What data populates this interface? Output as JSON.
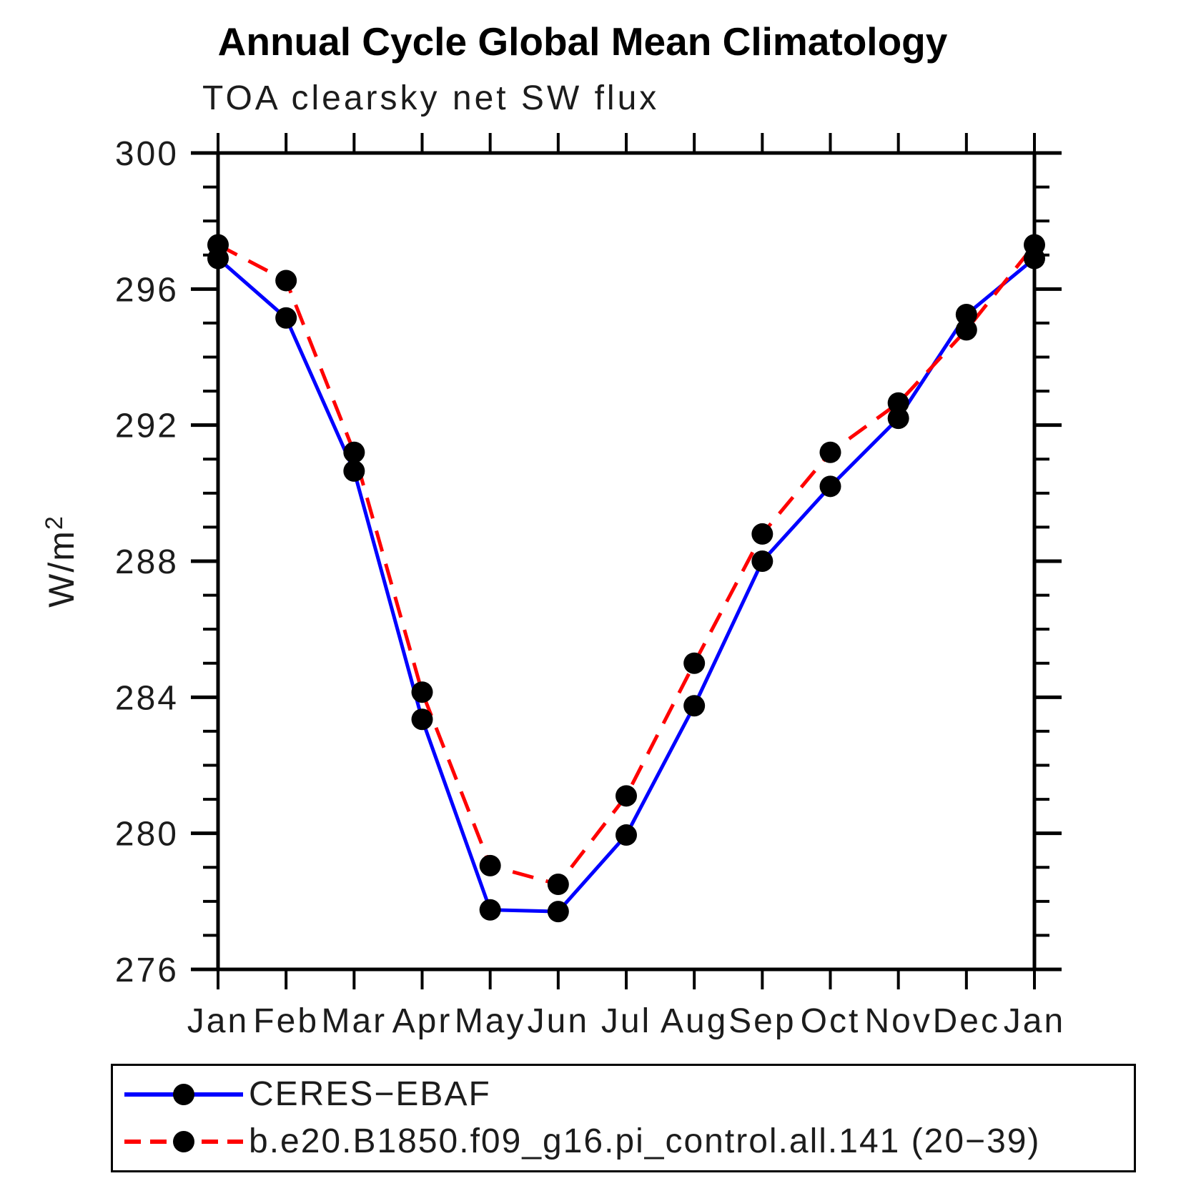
{
  "chart_data": {
    "type": "line",
    "title": "Annual Cycle Global Mean Climatology",
    "subtitle": "TOA clearsky net SW flux",
    "ylabel": "W/m²",
    "categories": [
      "Jan",
      "Feb",
      "Mar",
      "Apr",
      "May",
      "Jun",
      "Jul",
      "Aug",
      "Sep",
      "Oct",
      "Nov",
      "Dec",
      "Jan"
    ],
    "ylim": [
      276,
      300
    ],
    "ytick_major_step": 4,
    "ytick_minor_step": 1,
    "ytick_labels": [
      "300",
      "296",
      "292",
      "288",
      "284",
      "280",
      "276"
    ],
    "grid": false,
    "legend_position": "bottom",
    "marker": "circle",
    "marker_color": "#000000",
    "axis_color": "#000000",
    "series": [
      {
        "name": "CERES−EBAF",
        "color": "#0000ff",
        "line_style": "solid",
        "values": [
          296.9,
          295.15,
          290.65,
          283.35,
          277.75,
          277.7,
          279.95,
          283.75,
          288.0,
          290.2,
          292.2,
          295.25,
          296.9
        ]
      },
      {
        "name": "b.e20.B1850.f09_g16.pi_control.all.141 (20−39)",
        "color": "#ff0000",
        "line_style": "dashed",
        "values": [
          297.3,
          296.25,
          291.2,
          284.15,
          279.05,
          278.5,
          281.1,
          285.0,
          288.8,
          291.2,
          292.65,
          294.8,
          297.3
        ]
      }
    ]
  }
}
